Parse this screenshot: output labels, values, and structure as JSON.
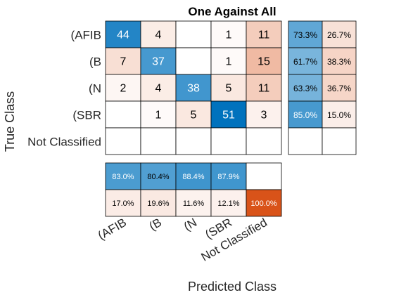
{
  "chart_data": {
    "type": "heatmap",
    "title": "One Against All",
    "xlabel": "Predicted Class",
    "ylabel": "True Class",
    "row_labels": [
      "(AFIB",
      "(B",
      "(N",
      "(SBR",
      "Not Classified"
    ],
    "col_labels": [
      "(AFIB",
      "(B",
      "(N",
      "(SBR",
      "Not Classified"
    ],
    "matrix": [
      [
        44,
        4,
        null,
        1,
        11
      ],
      [
        7,
        37,
        null,
        1,
        15
      ],
      [
        2,
        4,
        38,
        5,
        11
      ],
      [
        null,
        1,
        5,
        51,
        3
      ],
      [
        null,
        null,
        null,
        null,
        null
      ]
    ],
    "row_summary": [
      [
        "73.3%",
        "26.7%"
      ],
      [
        "61.7%",
        "38.3%"
      ],
      [
        "63.3%",
        "36.7%"
      ],
      [
        "85.0%",
        "15.0%"
      ],
      [
        null,
        null
      ]
    ],
    "col_summary": [
      [
        "83.0%",
        "80.4%",
        "88.4%",
        "87.9%",
        null
      ],
      [
        "17.0%",
        "19.6%",
        "11.6%",
        "12.1%",
        "100.0%"
      ]
    ],
    "colors": {
      "correct_max": "#0072bd",
      "incorrect_max": "#d95319",
      "background": "#ffffff",
      "grid": "#000000"
    }
  }
}
